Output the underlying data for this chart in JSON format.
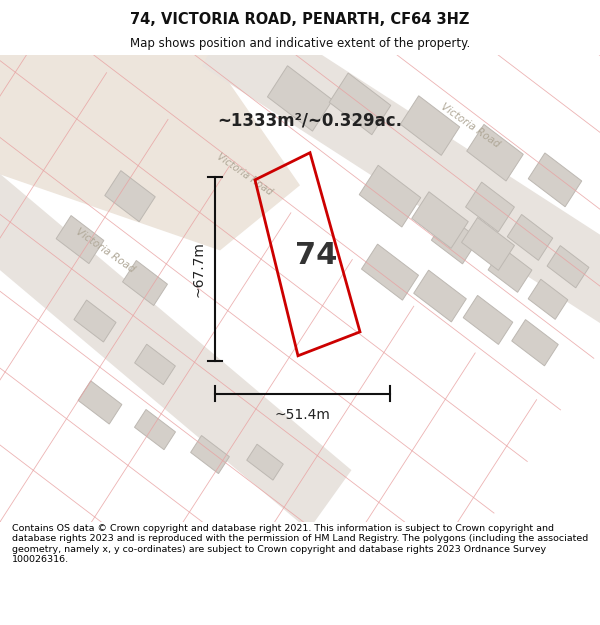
{
  "title": "74, VICTORIA ROAD, PENARTH, CF64 3HZ",
  "subtitle": "Map shows position and indicative extent of the property.",
  "footer": "Contains OS data © Crown copyright and database right 2021. This information is subject to Crown copyright and database rights 2023 and is reproduced with the permission of HM Land Registry. The polygons (including the associated geometry, namely x, y co-ordinates) are subject to Crown copyright and database rights 2023 Ordnance Survey 100026316.",
  "area_label": "~1333m²/~0.329ac.",
  "width_label": "~51.4m",
  "height_label": "~67.7m",
  "property_number": "74",
  "map_bg": "#ffffff",
  "beige_area_color": "#e8ddd4",
  "road_band_color": "#e8e4e0",
  "road_stripe_color": "#e8c8c8",
  "building_fill": "#d4cfc9",
  "building_edge": "#c0b8b2",
  "plot_line_color": "#cc0000",
  "pink_line_color": "#e8a0a0",
  "dim_line_color": "#111111",
  "victoria_road_label_color": "#b0a898",
  "label_color": "#222222"
}
